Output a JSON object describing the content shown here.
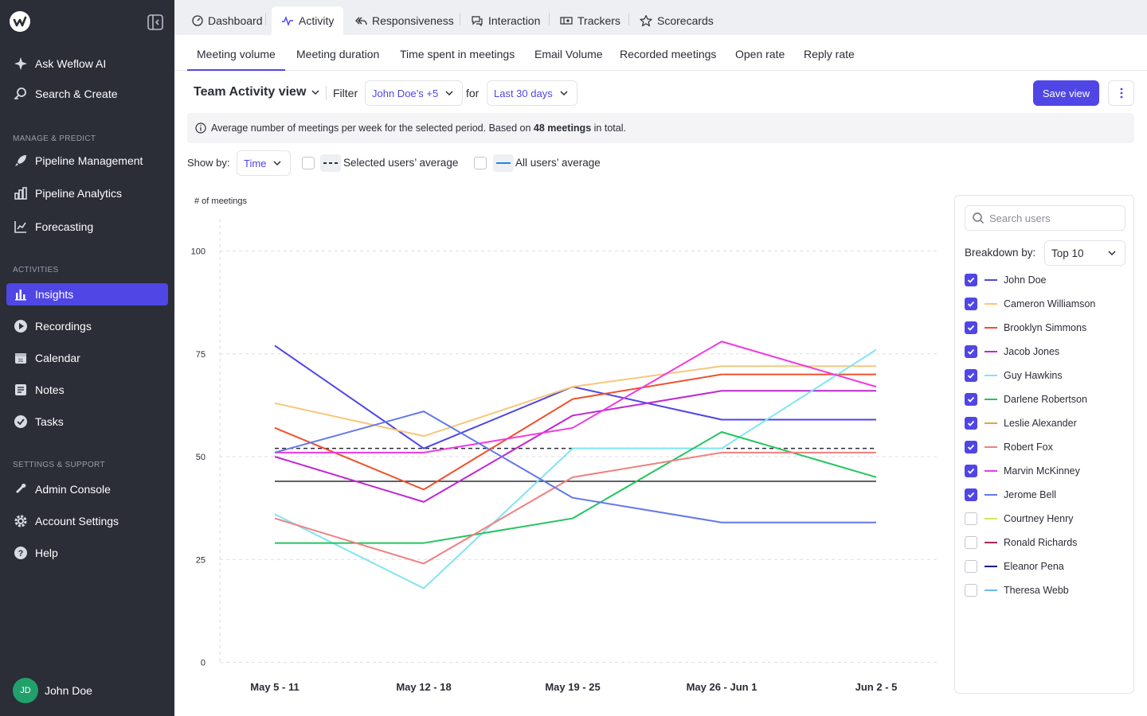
{
  "sidebar": {
    "ask_ai": "Ask Weflow AI",
    "search_create": "Search & Create",
    "section_manage": "MANAGE & PREDICT",
    "pipeline_mgmt": "Pipeline Management",
    "pipeline_analytics": "Pipeline Analytics",
    "forecasting": "Forecasting",
    "section_activities": "ACTIVITIES",
    "insights": "Insights",
    "recordings": "Recordings",
    "calendar": "Calendar",
    "notes": "Notes",
    "tasks": "Tasks",
    "section_settings": "SETTINGS & SUPPORT",
    "admin_console": "Admin Console",
    "account_settings": "Account Settings",
    "help": "Help",
    "user_initials": "JD",
    "user_name": "John Doe"
  },
  "top_tabs": [
    "Dashboard",
    "Activity",
    "Responsiveness",
    "Interaction",
    "Trackers",
    "Scorecards"
  ],
  "sub_tabs": [
    "Meeting volume",
    "Meeting duration",
    "Time spent in meetings",
    "Email Volume",
    "Recorded meetings",
    "Open rate",
    "Reply rate"
  ],
  "toolbar": {
    "view_title": "Team Activity view",
    "filter_label": "Filter",
    "filter_value": "John Doe’s +5",
    "for_label": "for",
    "period_value": "Last 30 days",
    "save_label": "Save view"
  },
  "info": {
    "text_before": "Average number of meetings per week for the selected period. Based on",
    "count": "48 meetings",
    "text_after": "in total."
  },
  "show_by": {
    "label": "Show by:",
    "value": "Time",
    "selected_avg_label": "Selected users’ average",
    "all_avg_label": "All users’ average"
  },
  "panel": {
    "search_placeholder": "Search users",
    "breakdown_label": "Breakdown by:",
    "breakdown_value": "Top 10",
    "users": [
      {
        "name": "John Doe",
        "color": "#4f46e5",
        "checked": true
      },
      {
        "name": "Cameron Williamson",
        "color": "#f6c77a",
        "checked": true
      },
      {
        "name": "Brooklyn Simmons",
        "color": "#f0512b",
        "checked": true
      },
      {
        "name": "Jacob Jones",
        "color": "#c026d3",
        "checked": true
      },
      {
        "name": "Guy Hawkins",
        "color": "#7ee6f2",
        "checked": true
      },
      {
        "name": "Darlene Robertson",
        "color": "#22c55e",
        "checked": true
      },
      {
        "name": "Leslie Alexander",
        "color": "#e8a33d",
        "checked": true
      },
      {
        "name": "Robert Fox",
        "color": "#f08080",
        "checked": true
      },
      {
        "name": "Marvin McKinney",
        "color": "#f039e0",
        "checked": true
      },
      {
        "name": "Jerome Bell",
        "color": "#6378e8",
        "checked": true
      },
      {
        "name": "Courtney Henry",
        "color": "#d4e85a",
        "checked": false
      },
      {
        "name": "Ronald Richards",
        "color": "#b0245a",
        "checked": false
      },
      {
        "name": "Eleanor Pena",
        "color": "#1e1b8f",
        "checked": false
      },
      {
        "name": "Theresa Webb",
        "color": "#6bb7f5",
        "checked": false
      }
    ]
  },
  "chart_data": {
    "type": "line",
    "ylabel": "# of meetings",
    "ylim": [
      0,
      100
    ],
    "yticks": [
      0,
      25,
      50,
      75,
      100
    ],
    "categories": [
      "May 5 - 11",
      "May 12 - 18",
      "May 19 - 25",
      "May 26 - Jun 1",
      "Jun 2 - 5"
    ],
    "series": [
      {
        "name": "John Doe",
        "color": "#4f46e5",
        "values": [
          77,
          52,
          67,
          59,
          59
        ]
      },
      {
        "name": "Cameron Williamson",
        "color": "#f6c77a",
        "values": [
          63,
          55,
          67,
          72,
          72
        ]
      },
      {
        "name": "Brooklyn Simmons",
        "color": "#f0512b",
        "values": [
          57,
          42,
          64,
          70,
          70
        ]
      },
      {
        "name": "Jacob Jones",
        "color": "#c026d3",
        "values": [
          50,
          39,
          60,
          66,
          66
        ]
      },
      {
        "name": "Guy Hawkins",
        "color": "#7ee6f2",
        "values": [
          36,
          18,
          52,
          52,
          76
        ]
      },
      {
        "name": "Darlene Robertson",
        "color": "#22c55e",
        "values": [
          29,
          29,
          35,
          56,
          45
        ]
      },
      {
        "name": "Robert Fox",
        "color": "#f08080",
        "values": [
          35,
          24,
          45,
          51,
          51
        ]
      },
      {
        "name": "Marvin McKinney",
        "color": "#f039e0",
        "values": [
          51,
          51,
          57,
          78,
          67
        ]
      },
      {
        "name": "Jerome Bell",
        "color": "#6378e8",
        "values": [
          51,
          61,
          40,
          34,
          34
        ]
      }
    ],
    "selected_users_average": 52,
    "all_users_average": 44
  }
}
